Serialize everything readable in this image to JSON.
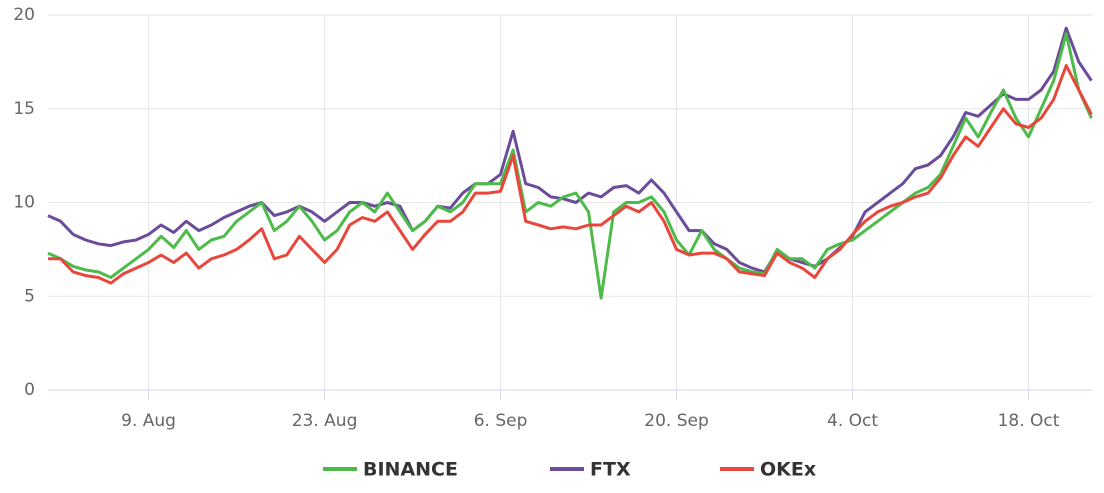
{
  "chart_data": {
    "type": "line",
    "categories": [
      null,
      null,
      null,
      null,
      null,
      null,
      null,
      null,
      "9. Aug",
      null,
      null,
      null,
      null,
      null,
      null,
      null,
      null,
      null,
      null,
      null,
      null,
      null,
      "23. Aug",
      null,
      null,
      null,
      null,
      null,
      null,
      null,
      null,
      null,
      null,
      null,
      null,
      null,
      "6. Sep",
      null,
      null,
      null,
      null,
      null,
      null,
      null,
      null,
      null,
      null,
      null,
      null,
      null,
      "20. Sep",
      null,
      null,
      null,
      null,
      null,
      null,
      null,
      null,
      null,
      null,
      null,
      null,
      null,
      "4. Oct",
      null,
      null,
      null,
      null,
      null,
      null,
      null,
      null,
      null,
      null,
      null,
      null,
      null,
      "18. Oct",
      null,
      null,
      null,
      null,
      null
    ],
    "series": [
      {
        "name": "BINANCE",
        "color": "#4dbb4a",
        "values": [
          7.3,
          7.0,
          6.6,
          6.4,
          6.3,
          6.0,
          6.5,
          7.0,
          7.5,
          8.2,
          7.6,
          8.5,
          7.5,
          8.0,
          8.2,
          9.0,
          9.5,
          10.0,
          8.5,
          9.0,
          9.8,
          9.0,
          8.0,
          8.5,
          9.5,
          10.0,
          9.5,
          10.5,
          9.5,
          8.5,
          9.0,
          9.8,
          9.5,
          10.0,
          11.0,
          11.0,
          11.0,
          12.8,
          9.5,
          10.0,
          9.8,
          10.3,
          10.5,
          9.5,
          4.9,
          9.5,
          10.0,
          10.0,
          10.3,
          9.5,
          8.0,
          7.2,
          8.5,
          7.5,
          7.0,
          6.5,
          6.3,
          6.2,
          7.5,
          7.0,
          7.0,
          6.5,
          7.5,
          7.8,
          8.0,
          8.5,
          9.0,
          9.5,
          10.0,
          10.5,
          10.8,
          11.5,
          13.0,
          14.5,
          13.5,
          14.8,
          16.0,
          14.5,
          13.5,
          15.0,
          16.5,
          19.0,
          16.0,
          14.5
        ]
      },
      {
        "name": "FTX",
        "color": "#6b4c9a",
        "values": [
          9.3,
          9.0,
          8.3,
          8.0,
          7.8,
          7.7,
          7.9,
          8.0,
          8.3,
          8.8,
          8.4,
          9.0,
          8.5,
          8.8,
          9.2,
          9.5,
          9.8,
          10.0,
          9.3,
          9.5,
          9.8,
          9.5,
          9.0,
          9.5,
          10.0,
          10.0,
          9.8,
          10.0,
          9.8,
          8.5,
          9.0,
          9.8,
          9.7,
          10.5,
          11.0,
          11.0,
          11.5,
          13.8,
          11.0,
          10.8,
          10.3,
          10.2,
          10.0,
          10.5,
          10.3,
          10.8,
          10.9,
          10.5,
          11.2,
          10.5,
          9.5,
          8.5,
          8.5,
          7.8,
          7.5,
          6.8,
          6.5,
          6.3,
          7.4,
          7.0,
          6.8,
          6.6,
          7.0,
          7.6,
          8.2,
          9.5,
          10.0,
          10.5,
          11.0,
          11.8,
          12.0,
          12.5,
          13.5,
          14.8,
          14.6,
          15.2,
          15.8,
          15.5,
          15.5,
          16.0,
          17.0,
          19.3,
          17.5,
          16.5
        ]
      },
      {
        "name": "OKEx",
        "color": "#e8473c",
        "values": [
          7.0,
          7.0,
          6.3,
          6.1,
          6.0,
          5.7,
          6.2,
          6.5,
          6.8,
          7.2,
          6.8,
          7.3,
          6.5,
          7.0,
          7.2,
          7.5,
          8.0,
          8.6,
          7.0,
          7.2,
          8.2,
          7.5,
          6.8,
          7.5,
          8.8,
          9.2,
          9.0,
          9.5,
          8.5,
          7.5,
          8.3,
          9.0,
          9.0,
          9.5,
          10.5,
          10.5,
          10.6,
          12.5,
          9.0,
          8.8,
          8.6,
          8.7,
          8.6,
          8.8,
          8.8,
          9.3,
          9.8,
          9.5,
          10.0,
          9.0,
          7.5,
          7.2,
          7.3,
          7.3,
          7.0,
          6.3,
          6.2,
          6.1,
          7.3,
          6.8,
          6.5,
          6.0,
          7.0,
          7.5,
          8.3,
          9.0,
          9.5,
          9.8,
          10.0,
          10.3,
          10.5,
          11.3,
          12.5,
          13.5,
          13.0,
          14.0,
          15.0,
          14.2,
          14.0,
          14.5,
          15.5,
          17.3,
          16.0,
          14.7
        ]
      }
    ],
    "ylim": [
      0,
      20
    ],
    "yticks": [
      0,
      5,
      10,
      15,
      20
    ],
    "grid": true
  }
}
